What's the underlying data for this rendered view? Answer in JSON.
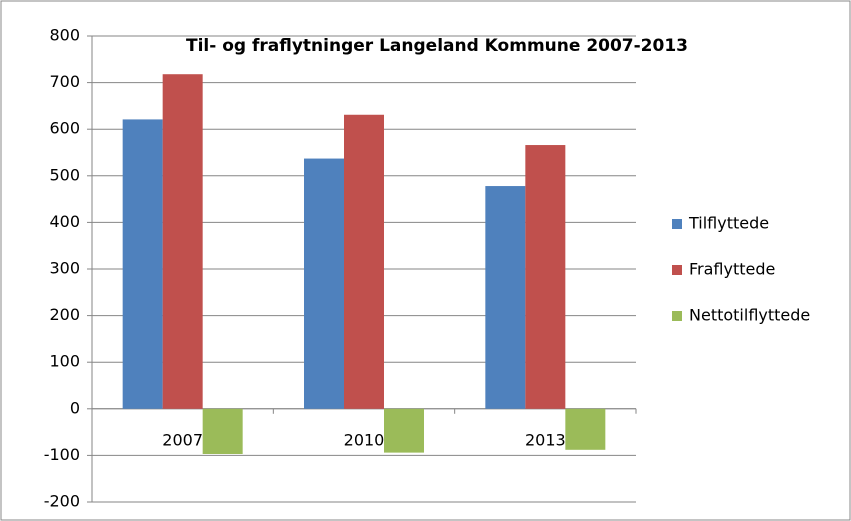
{
  "chart_data": {
    "type": "bar",
    "title": "Til- og fraflytninger Langeland Kommune 2007-2013",
    "categories": [
      "2007",
      "2010",
      "2013"
    ],
    "series": [
      {
        "name": "Tilflyttede",
        "color": "#4f81bd",
        "values": [
          621,
          537,
          478
        ]
      },
      {
        "name": "Fraflyttede",
        "color": "#c0504d",
        "values": [
          718,
          631,
          566
        ]
      },
      {
        "name": "Nettotilflyttede",
        "color": "#9bbb59",
        "values": [
          -97,
          -94,
          -88
        ]
      }
    ],
    "ylim": [
      -200,
      800
    ],
    "yticks": [
      -200,
      -100,
      0,
      100,
      200,
      300,
      400,
      500,
      600,
      700,
      800
    ],
    "grid": true,
    "legend": "right"
  }
}
